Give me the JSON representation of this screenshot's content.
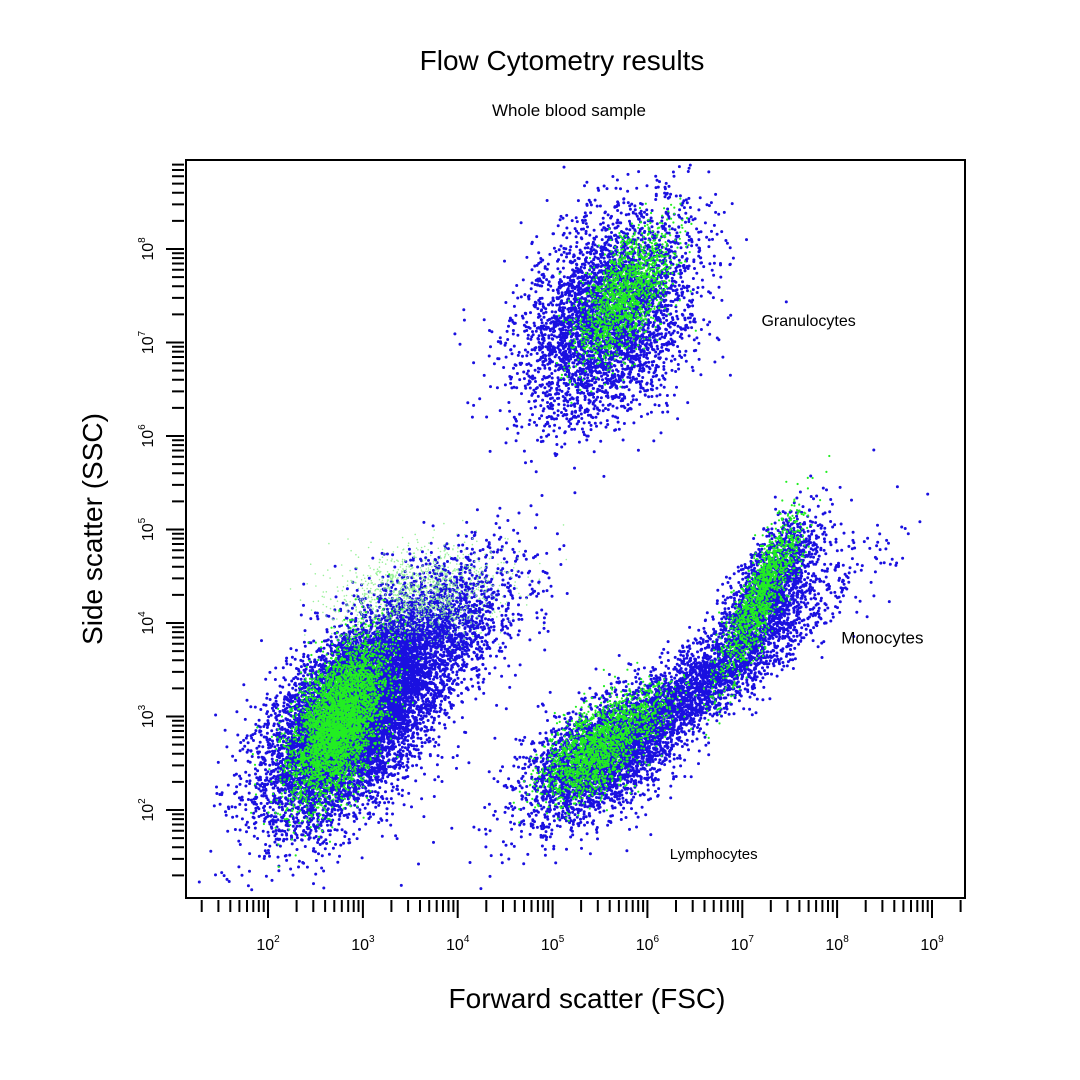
{
  "chart_data": {
    "type": "scatter",
    "title": "Flow Cytometry results",
    "subtitle": "Whole blood sample",
    "xlabel": "Forward scatter (FSC)",
    "ylabel": "Side scatter (SSC)",
    "x_scale": "log10",
    "y_scale": "log10",
    "xlim": [
      10,
      1000000000
    ],
    "ylim": [
      10,
      1000000000
    ],
    "grid": false,
    "legend": "none",
    "x_ticks": [
      {
        "base": "10",
        "exp": "2",
        "value": 100
      },
      {
        "base": "10",
        "exp": "3",
        "value": 1000
      },
      {
        "base": "10",
        "exp": "4",
        "value": 10000
      },
      {
        "base": "10",
        "exp": "5",
        "value": 100000
      },
      {
        "base": "10",
        "exp": "6",
        "value": 1000000
      },
      {
        "base": "10",
        "exp": "7",
        "value": 10000000
      },
      {
        "base": "10",
        "exp": "8",
        "value": 100000000
      },
      {
        "base": "10",
        "exp": "9",
        "value": 1000000000
      }
    ],
    "y_ticks": [
      {
        "base": "10",
        "exp": "2",
        "value": 100
      },
      {
        "base": "10",
        "exp": "3",
        "value": 1000
      },
      {
        "base": "10",
        "exp": "4",
        "value": 10000
      },
      {
        "base": "10",
        "exp": "5",
        "value": 100000
      },
      {
        "base": "10",
        "exp": "6",
        "value": 1000000
      },
      {
        "base": "10",
        "exp": "7",
        "value": 10000000
      },
      {
        "base": "10",
        "exp": "8",
        "value": 100000000
      }
    ],
    "colors": {
      "primary": "#1a10e0",
      "secondary": "#22ee22"
    },
    "series": [
      {
        "color": "#1a10e0",
        "values_note_excluded": true
      }
    ],
    "populations": [
      {
        "label": "Granulocytes",
        "fsc_center": 400000,
        "ssc_center": 20000000
      },
      {
        "label": "Monocytes",
        "fsc_center": 20000000,
        "ssc_center": 30000
      },
      {
        "label": "Lymphocytes",
        "fsc_center": 300000,
        "ssc_center": 400
      },
      {
        "label": "",
        "fsc_center": 800,
        "ssc_center": 1000
      }
    ],
    "annotations": [
      {
        "text": "Granulocytes",
        "x": 50000000,
        "y": 15000000
      },
      {
        "text": "Monocytes",
        "x": 300000000,
        "y": 6000
      },
      {
        "text": "Lymphocytes",
        "x": 5000000,
        "y": 30
      }
    ]
  }
}
